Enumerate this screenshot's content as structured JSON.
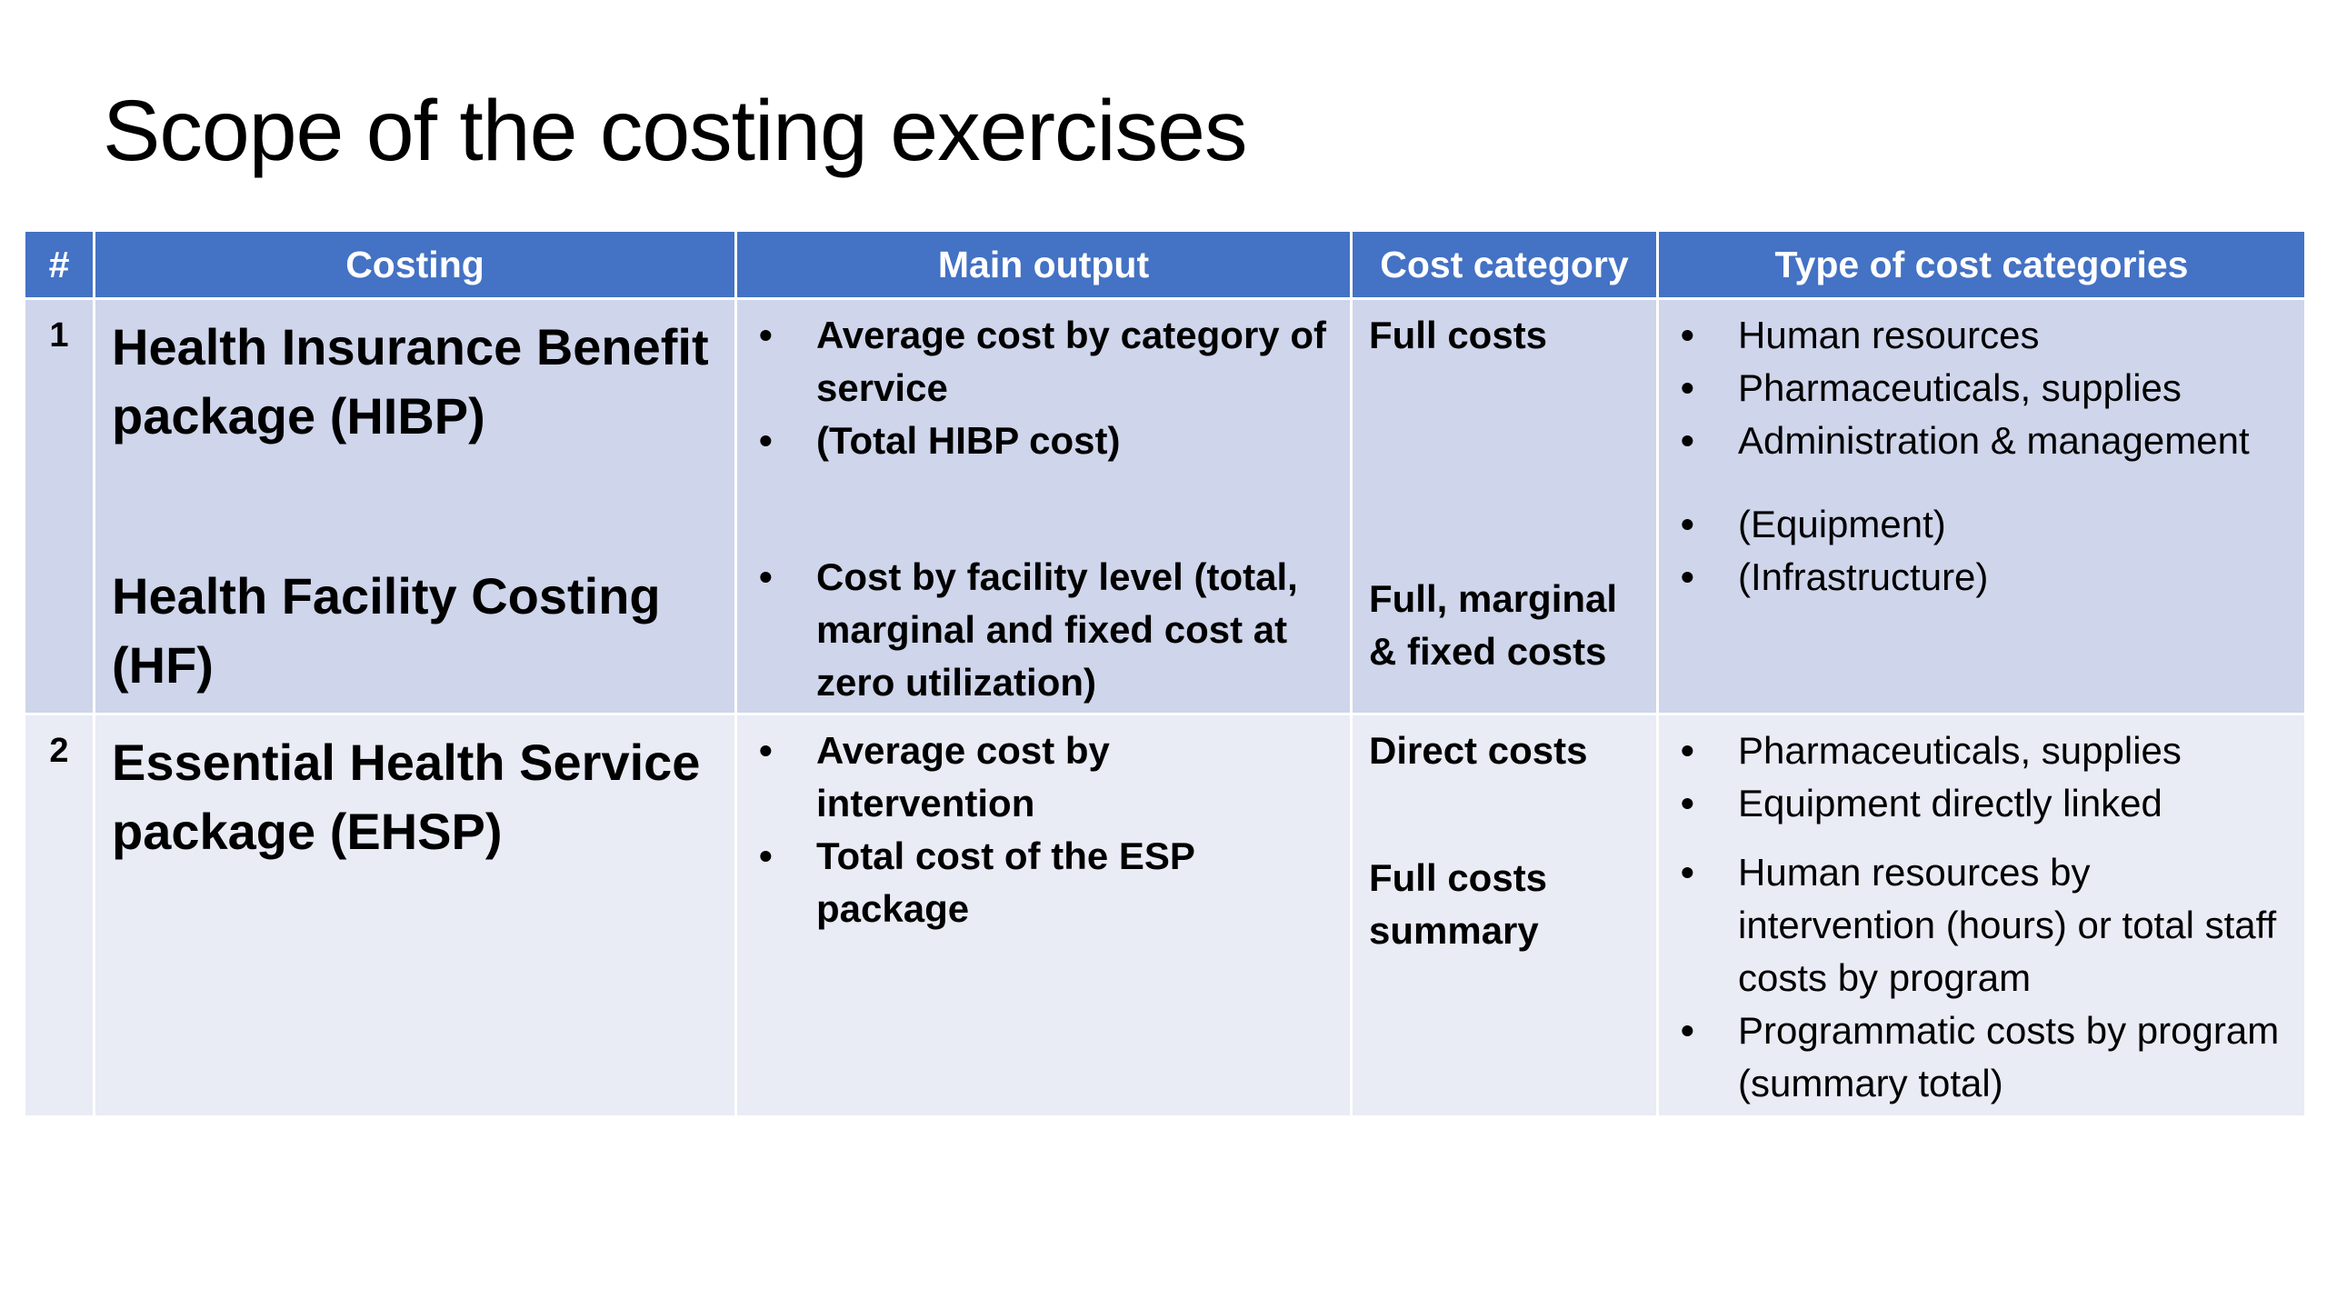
{
  "slide": {
    "title": "Scope of the costing exercises"
  },
  "table": {
    "headers": [
      "#",
      "Costing",
      "Main output",
      "Cost category",
      "Type of cost categories"
    ],
    "rows": [
      {
        "number": "1",
        "costing": [
          "Health Insurance Benefit package (HIBP)",
          "Health Facility Costing (HF)"
        ],
        "main_output_hibp": [
          "Average cost by category of service",
          "(Total HIBP cost)"
        ],
        "main_output_hf": [
          "Cost by facility level (total, marginal and fixed cost at zero utilization)"
        ],
        "cost_category": [
          "Full costs",
          "Full, marginal & fixed costs"
        ],
        "types_a": [
          "Human resources",
          "Pharmaceuticals, supplies",
          "Administration & management"
        ],
        "types_b": [
          "(Equipment)",
          "(Infrastructure)"
        ]
      },
      {
        "number": "2",
        "costing": [
          "Essential Health Service package (EHSP)"
        ],
        "main_output": [
          "Average cost by intervention",
          "Total cost of the ESP package"
        ],
        "cost_category": [
          "Direct costs",
          "Full costs summary"
        ],
        "types_a": [
          "Pharmaceuticals, supplies",
          "Equipment directly linked"
        ],
        "types_b": [
          "Human resources by intervention (hours) or total staff costs by program",
          "Programmatic costs by program (summary total)"
        ]
      }
    ]
  },
  "colors": {
    "header_bg": "#4472c4",
    "row1_bg": "#cfd5ea",
    "row2_bg": "#e9ebf5"
  }
}
